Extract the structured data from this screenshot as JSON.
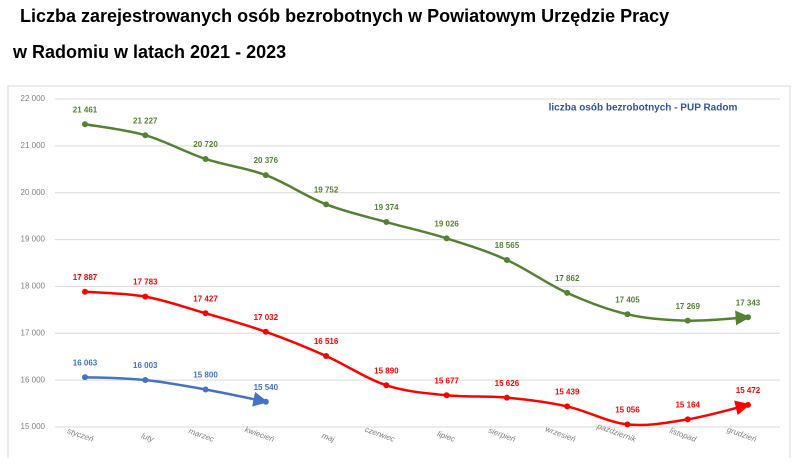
{
  "chart_data": {
    "type": "line",
    "title_lines": [
      "Liczba zarejestrowanych osób bezrobotnych w Powiatowym Urzędzie Pracy",
      "w Radomiu w latach 2021 - 2023"
    ],
    "annotation": "liczba osób bezrobotnych - PUP Radom",
    "categories": [
      "styczeń",
      "luty",
      "marzec",
      "kwiecień",
      "maj",
      "czerwiec",
      "lipiec",
      "sierpień",
      "wrzesień",
      "październik",
      "listopad",
      "grudzień"
    ],
    "series": [
      {
        "color": "#548235",
        "values": [
          21461,
          21227,
          20720,
          20376,
          19752,
          19374,
          19026,
          18565,
          17862,
          17405,
          17269,
          17343
        ],
        "value_labels": [
          "21 461",
          "21 227",
          "20 720",
          "20 376",
          "19 752",
          "19 374",
          "19 026",
          "18 565",
          "17 862",
          "17 405",
          "17 269",
          "17 343"
        ]
      },
      {
        "color": "#ff0000",
        "values": [
          17887,
          17783,
          17427,
          17032,
          16516,
          15890,
          15677,
          15626,
          15439,
          15056,
          15164,
          15472
        ],
        "value_labels": [
          "17 887",
          "17 783",
          "17 427",
          "17 032",
          "16 516",
          "15 890",
          "15 677",
          "15 626",
          "15 439",
          "15 056",
          "15 164",
          "15 472"
        ]
      },
      {
        "color": "#4472c4",
        "values": [
          16063,
          16003,
          15800,
          15540,
          null,
          null,
          null,
          null,
          null,
          null,
          null,
          null
        ],
        "value_labels": [
          "16 063",
          "16 003",
          "15 800",
          "15 540",
          null,
          null,
          null,
          null,
          null,
          null,
          null,
          null
        ]
      }
    ],
    "ylim": [
      15000,
      22000
    ],
    "yticks": [
      {
        "value": 15000,
        "label": "15 000"
      },
      {
        "value": 16000,
        "label": "16 000"
      },
      {
        "value": 17000,
        "label": "17 000"
      },
      {
        "value": 18000,
        "label": "18 000"
      },
      {
        "value": 19000,
        "label": "19 000"
      },
      {
        "value": 20000,
        "label": "20 000"
      },
      {
        "value": 21000,
        "label": "21 000"
      },
      {
        "value": 22000,
        "label": "22 000"
      }
    ],
    "grid": true
  }
}
